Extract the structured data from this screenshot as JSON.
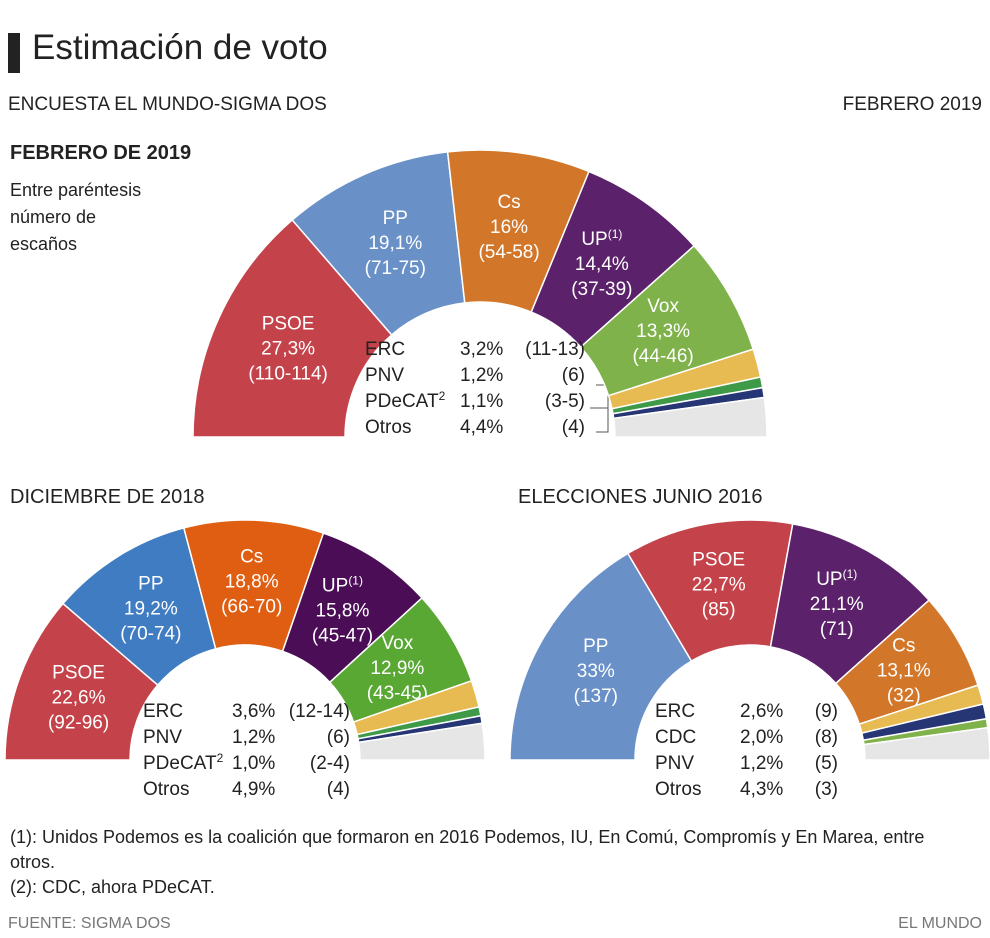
{
  "header": {
    "title": "Estimación de voto",
    "subtitle": "ENCUESTA EL MUNDO-SIGMA DOS",
    "date": "FEBRERO 2019"
  },
  "chart_data": [
    {
      "type": "hemicycle",
      "title": "FEBRERO DE 2019",
      "subtitle": "Entre paréntesis número de escaños",
      "categories": [
        "PSOE",
        "PP",
        "Cs",
        "UP",
        "Vox",
        "ERC",
        "PNV",
        "PDeCAT",
        "Otros"
      ],
      "category_notes": [
        null,
        null,
        null,
        "(1)",
        null,
        null,
        null,
        "2",
        null
      ],
      "values": [
        27.3,
        19.1,
        16,
        14.4,
        13.3,
        3.2,
        1.2,
        1.1,
        4.4
      ],
      "value_labels": [
        "27,3%",
        "19,1%",
        "16%",
        "14,4%",
        "13,3%",
        "3,2%",
        "1,2%",
        "1,1%",
        "4,4%"
      ],
      "seats": [
        "(110-114)",
        "(71-75)",
        "(54-58)",
        "(37-39)",
        "(44-46)",
        "(11-13)",
        "(6)",
        "(3-5)",
        "(4)"
      ],
      "colors": [
        "#c4434b",
        "#6a90c8",
        "#d2772a",
        "#5b216a",
        "#80b24b",
        "#e8ba52",
        "#3f9a48",
        "#263574",
        "#e6e6e6"
      ]
    },
    {
      "type": "hemicycle",
      "title": "DICIEMBRE DE 2018",
      "categories": [
        "PSOE",
        "PP",
        "Cs",
        "UP",
        "Vox",
        "ERC",
        "PNV",
        "PDeCAT",
        "Otros"
      ],
      "category_notes": [
        null,
        null,
        null,
        "(1)",
        null,
        null,
        null,
        "2",
        null
      ],
      "values": [
        22.6,
        19.2,
        18.8,
        15.8,
        12.9,
        3.6,
        1.2,
        1.0,
        4.9
      ],
      "value_labels": [
        "22,6%",
        "19,2%",
        "18,8%",
        "15,8%",
        "12,9%",
        "3,6%",
        "1,2%",
        "1,0%",
        "4,9%"
      ],
      "seats": [
        "(92-96)",
        "(70-74)",
        "(66-70)",
        "(45-47)",
        "(43-45)",
        "(12-14)",
        "(6)",
        "(2-4)",
        "(4)"
      ],
      "colors": [
        "#c4434b",
        "#3f7cc1",
        "#e05e12",
        "#4b0e56",
        "#5aa834",
        "#e8ba52",
        "#3f9a48",
        "#263574",
        "#e6e6e6"
      ]
    },
    {
      "type": "hemicycle",
      "title": "ELECCIONES JUNIO 2016",
      "categories": [
        "PP",
        "PSOE",
        "UP",
        "Cs",
        "ERC",
        "CDC",
        "PNV",
        "Otros"
      ],
      "category_notes": [
        null,
        null,
        "(1)",
        null,
        null,
        null,
        null,
        null
      ],
      "values": [
        33,
        22.7,
        21.1,
        13.1,
        2.6,
        2.0,
        1.2,
        4.3
      ],
      "value_labels": [
        "33%",
        "22,7%",
        "21,1%",
        "13,1%",
        "2,6%",
        "2,0%",
        "1,2%",
        "4,3%"
      ],
      "seats": [
        "(137)",
        "(85)",
        "(71)",
        "(32)",
        "(9)",
        "(8)",
        "(5)",
        "(3)"
      ],
      "colors": [
        "#6a90c8",
        "#c4434b",
        "#5b216a",
        "#d2772a",
        "#e8ba52",
        "#263574",
        "#80b24b",
        "#e6e6e6"
      ]
    }
  ],
  "footer": {
    "notes": [
      "(1): Unidos Podemos es la coalición que formaron en 2016 Podemos, IU, En Comú, Compromís y En Marea, entre otros.",
      "(2): CDC, ahora PDeCAT."
    ],
    "source": "FUENTE: SIGMA DOS",
    "brand": "EL MUNDO"
  }
}
